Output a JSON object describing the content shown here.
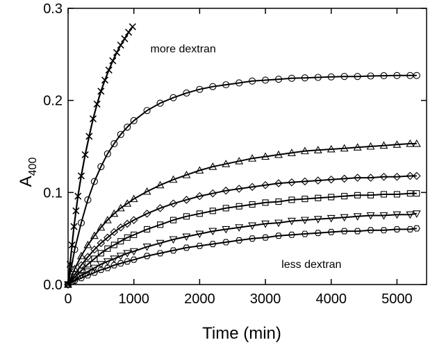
{
  "chart_data": {
    "type": "scatter",
    "title": "",
    "xlabel": "Time (min)",
    "ylabel_main": "A",
    "ylabel_sub": "400",
    "xlim": [
      0,
      5450
    ],
    "ylim": [
      0,
      0.3
    ],
    "x_ticks": [
      0,
      1000,
      2000,
      3000,
      4000,
      5000
    ],
    "x_tick_labels": [
      "0",
      "1000",
      "2000",
      "3000",
      "4000",
      "5000"
    ],
    "y_ticks": [
      0.0,
      0.1,
      0.2,
      0.3
    ],
    "y_tick_labels": [
      "0.0",
      "0.1",
      "0.2",
      "0.3"
    ],
    "grid": false,
    "annotations": [
      {
        "text": "more dextran",
        "x": 1750,
        "y": 0.252
      },
      {
        "text": "less dextran",
        "x": 3700,
        "y": 0.018
      }
    ],
    "series": [
      {
        "marker": "x",
        "x": [
          0,
          30,
          60,
          90,
          120,
          150,
          200,
          260,
          320,
          380,
          440,
          500,
          560,
          620,
          680,
          740,
          800,
          860,
          920,
          980
        ],
        "y": [
          0.0,
          0.022,
          0.043,
          0.063,
          0.08,
          0.096,
          0.118,
          0.141,
          0.161,
          0.18,
          0.196,
          0.21,
          0.222,
          0.233,
          0.243,
          0.252,
          0.26,
          0.267,
          0.274,
          0.28
        ]
      },
      {
        "marker": "circle",
        "x": [
          0,
          100,
          200,
          300,
          400,
          500,
          600,
          700,
          800,
          900,
          1000,
          1200,
          1400,
          1600,
          1800,
          2000,
          2200,
          2400,
          2600,
          2800,
          3000,
          3200,
          3400,
          3600,
          3800,
          4000,
          4200,
          4400,
          4600,
          4800,
          5000,
          5200,
          5300
        ],
        "y": [
          0.0,
          0.038,
          0.067,
          0.092,
          0.112,
          0.128,
          0.142,
          0.153,
          0.163,
          0.171,
          0.178,
          0.189,
          0.197,
          0.203,
          0.208,
          0.212,
          0.215,
          0.217,
          0.219,
          0.221,
          0.222,
          0.223,
          0.224,
          0.2245,
          0.225,
          0.2255,
          0.226,
          0.226,
          0.2265,
          0.2268,
          0.227,
          0.227,
          0.227
        ]
      },
      {
        "marker": "triangle-up",
        "x": [
          0,
          100,
          200,
          300,
          400,
          500,
          600,
          700,
          800,
          900,
          1000,
          1200,
          1400,
          1600,
          1800,
          2000,
          2200,
          2400,
          2600,
          2800,
          3000,
          3200,
          3400,
          3600,
          3800,
          4000,
          4200,
          4400,
          4600,
          4800,
          5000,
          5200,
          5300
        ],
        "y": [
          0.0,
          0.017,
          0.031,
          0.043,
          0.053,
          0.062,
          0.07,
          0.077,
          0.083,
          0.088,
          0.093,
          0.101,
          0.108,
          0.114,
          0.119,
          0.124,
          0.128,
          0.131,
          0.134,
          0.137,
          0.139,
          0.141,
          0.143,
          0.145,
          0.146,
          0.147,
          0.148,
          0.149,
          0.15,
          0.151,
          0.152,
          0.153,
          0.153
        ]
      },
      {
        "marker": "diamond",
        "x": [
          0,
          100,
          200,
          300,
          400,
          500,
          600,
          700,
          800,
          900,
          1000,
          1200,
          1400,
          1600,
          1800,
          2000,
          2200,
          2400,
          2600,
          2800,
          3000,
          3200,
          3400,
          3600,
          3800,
          4000,
          4200,
          4400,
          4600,
          4800,
          5000,
          5200,
          5300
        ],
        "y": [
          0.0,
          0.011,
          0.021,
          0.03,
          0.038,
          0.045,
          0.051,
          0.057,
          0.062,
          0.066,
          0.07,
          0.077,
          0.083,
          0.088,
          0.092,
          0.096,
          0.099,
          0.102,
          0.104,
          0.106,
          0.108,
          0.11,
          0.111,
          0.112,
          0.113,
          0.114,
          0.115,
          0.116,
          0.116,
          0.117,
          0.117,
          0.118,
          0.118
        ]
      },
      {
        "marker": "square",
        "x": [
          0,
          100,
          200,
          300,
          400,
          500,
          600,
          700,
          800,
          900,
          1000,
          1200,
          1400,
          1600,
          1800,
          2000,
          2200,
          2400,
          2600,
          2800,
          3000,
          3200,
          3400,
          3600,
          3800,
          4000,
          4200,
          4400,
          4600,
          4800,
          5000,
          5200,
          5300
        ],
        "y": [
          0.0,
          0.008,
          0.015,
          0.022,
          0.028,
          0.034,
          0.039,
          0.043,
          0.047,
          0.051,
          0.054,
          0.06,
          0.065,
          0.07,
          0.074,
          0.077,
          0.08,
          0.083,
          0.085,
          0.087,
          0.089,
          0.09,
          0.092,
          0.093,
          0.094,
          0.095,
          0.096,
          0.097,
          0.097,
          0.098,
          0.098,
          0.099,
          0.099
        ]
      },
      {
        "marker": "triangle-down",
        "x": [
          0,
          100,
          200,
          300,
          400,
          500,
          600,
          700,
          800,
          900,
          1000,
          1200,
          1400,
          1600,
          1800,
          2000,
          2200,
          2400,
          2600,
          2800,
          3000,
          3200,
          3400,
          3600,
          3800,
          4000,
          4200,
          4400,
          4600,
          4800,
          5000,
          5200,
          5300
        ],
        "y": [
          0.0,
          0.005,
          0.01,
          0.014,
          0.018,
          0.022,
          0.025,
          0.028,
          0.031,
          0.034,
          0.036,
          0.041,
          0.045,
          0.049,
          0.052,
          0.055,
          0.058,
          0.06,
          0.062,
          0.064,
          0.066,
          0.067,
          0.069,
          0.07,
          0.071,
          0.072,
          0.073,
          0.074,
          0.075,
          0.075,
          0.076,
          0.076,
          0.077
        ]
      },
      {
        "marker": "hexagon",
        "x": [
          0,
          100,
          200,
          300,
          400,
          500,
          600,
          700,
          800,
          900,
          1000,
          1200,
          1400,
          1600,
          1800,
          2000,
          2200,
          2400,
          2600,
          2800,
          3000,
          3200,
          3400,
          3600,
          3800,
          4000,
          4200,
          4400,
          4600,
          4800,
          5000,
          5200,
          5300
        ],
        "y": [
          0.0,
          0.004,
          0.007,
          0.01,
          0.013,
          0.016,
          0.018,
          0.021,
          0.023,
          0.025,
          0.027,
          0.031,
          0.034,
          0.037,
          0.04,
          0.042,
          0.044,
          0.046,
          0.048,
          0.05,
          0.051,
          0.053,
          0.054,
          0.055,
          0.056,
          0.057,
          0.058,
          0.058,
          0.059,
          0.059,
          0.06,
          0.06,
          0.061
        ]
      }
    ]
  }
}
